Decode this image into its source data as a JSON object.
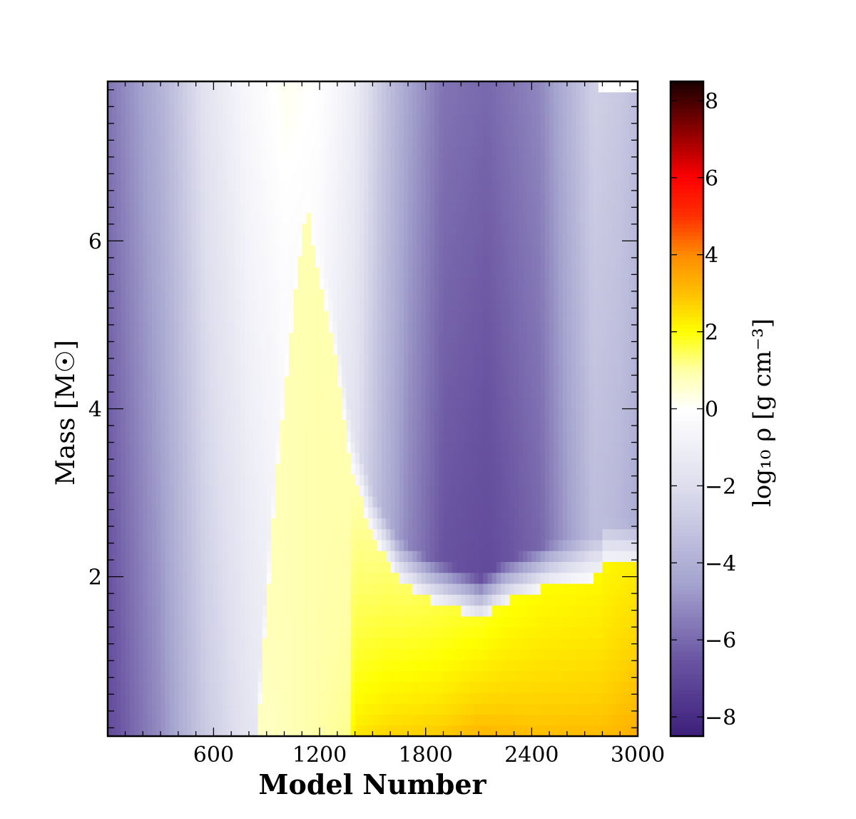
{
  "chart_data": {
    "type": "heatmap",
    "title": "",
    "xlabel": "Model Number",
    "ylabel": "Mass [M☉]",
    "xlim": [
      1,
      3000
    ],
    "ylim": [
      0.1,
      7.9
    ],
    "x_ticks": [
      600,
      1200,
      1800,
      2400,
      3000
    ],
    "x_tick_labels": [
      "600",
      "1200",
      "1800",
      "2400",
      "3000"
    ],
    "y_ticks": [
      2,
      4,
      6
    ],
    "y_tick_labels": [
      "2",
      "4",
      "6"
    ],
    "colorbar": {
      "label": "log₁₀ ρ [g cm⁻³]",
      "range": [
        -8.5,
        8.5
      ],
      "ticks": [
        -8,
        -6,
        -4,
        -2,
        0,
        2,
        4,
        6,
        8
      ],
      "tick_labels": [
        "−8",
        "−6",
        "−4",
        "−2",
        "0",
        "2",
        "4",
        "6",
        "8"
      ],
      "colormap": [
        {
          "v": -8.5,
          "color": "#3d1f7a"
        },
        {
          "v": -6.5,
          "color": "#6a55a2"
        },
        {
          "v": -4.5,
          "color": "#a5a4cf"
        },
        {
          "v": -2.0,
          "color": "#dedeee"
        },
        {
          "v": 0.0,
          "color": "#ffffff"
        },
        {
          "v": 1.0,
          "color": "#ffffa8"
        },
        {
          "v": 2.0,
          "color": "#ffff00"
        },
        {
          "v": 3.0,
          "color": "#ffc000"
        },
        {
          "v": 4.0,
          "color": "#ff8c00"
        },
        {
          "v": 5.0,
          "color": "#ff3000"
        },
        {
          "v": 6.0,
          "color": "#ff0000"
        },
        {
          "v": 7.0,
          "color": "#a00000"
        },
        {
          "v": 8.5,
          "color": "#1a0000"
        }
      ]
    },
    "surface_mass": [
      {
        "x": 0,
        "m": 7.9
      },
      {
        "x": 2200,
        "m": 7.9
      },
      {
        "x": 2300,
        "m": 7.87
      },
      {
        "x": 2700,
        "m": 7.86
      },
      {
        "x": 2800,
        "m": 7.83
      },
      {
        "x": 3000,
        "m": 7.82
      }
    ],
    "core_boundary": [
      {
        "x": 850,
        "m": 0.1
      },
      {
        "x": 950,
        "m": 3.0
      },
      {
        "x": 1050,
        "m": 5.2
      },
      {
        "x": 1130,
        "m": 6.4
      },
      {
        "x": 1200,
        "m": 5.5
      },
      {
        "x": 1280,
        "m": 4.7
      },
      {
        "x": 1380,
        "m": 3.3
      },
      {
        "x": 1500,
        "m": 2.5
      },
      {
        "x": 1650,
        "m": 1.95
      },
      {
        "x": 1800,
        "m": 1.75
      },
      {
        "x": 2000,
        "m": 1.6
      },
      {
        "x": 2110,
        "m": 1.5
      },
      {
        "x": 2250,
        "m": 1.7
      },
      {
        "x": 2500,
        "m": 1.9
      },
      {
        "x": 2790,
        "m": 2.0
      },
      {
        "x": 2800,
        "m": 2.15
      },
      {
        "x": 3000,
        "m": 2.15
      }
    ],
    "envelope_log_rho": [
      {
        "x": 0,
        "v": -6.3
      },
      {
        "x": 300,
        "v": -4.5
      },
      {
        "x": 550,
        "v": -2.3
      },
      {
        "x": 800,
        "v": -1.0
      },
      {
        "x": 1000,
        "v": -0.4
      },
      {
        "x": 1200,
        "v": -0.6
      },
      {
        "x": 1400,
        "v": -1.7
      },
      {
        "x": 1550,
        "v": -3.5
      },
      {
        "x": 1700,
        "v": -5.0
      },
      {
        "x": 1900,
        "v": -6.3
      },
      {
        "x": 2150,
        "v": -6.6
      },
      {
        "x": 2450,
        "v": -5.8
      },
      {
        "x": 2600,
        "v": -4.5
      },
      {
        "x": 2750,
        "v": -3.2
      },
      {
        "x": 2900,
        "v": -3.5
      },
      {
        "x": 3000,
        "v": -4.0
      }
    ],
    "core_log_rho": [
      {
        "x": 850,
        "vc": 0.6,
        "vb": 0.8
      },
      {
        "x": 1100,
        "vc": 0.9,
        "vb": 0.9
      },
      {
        "x": 1380,
        "vc": 1.2,
        "vb": 0.9
      },
      {
        "x": 1390,
        "vc": 2.6,
        "vb": 0.9
      },
      {
        "x": 1600,
        "vc": 3.0,
        "vb": 1.3
      },
      {
        "x": 1900,
        "vc": 3.2,
        "vb": 1.6
      },
      {
        "x": 2100,
        "vc": 3.6,
        "vb": 1.8
      },
      {
        "x": 2400,
        "vc": 3.3,
        "vb": 2.0
      },
      {
        "x": 2800,
        "vc": 3.3,
        "vb": 2.1
      },
      {
        "x": 3000,
        "vc": 3.6,
        "vb": 2.3
      }
    ]
  }
}
